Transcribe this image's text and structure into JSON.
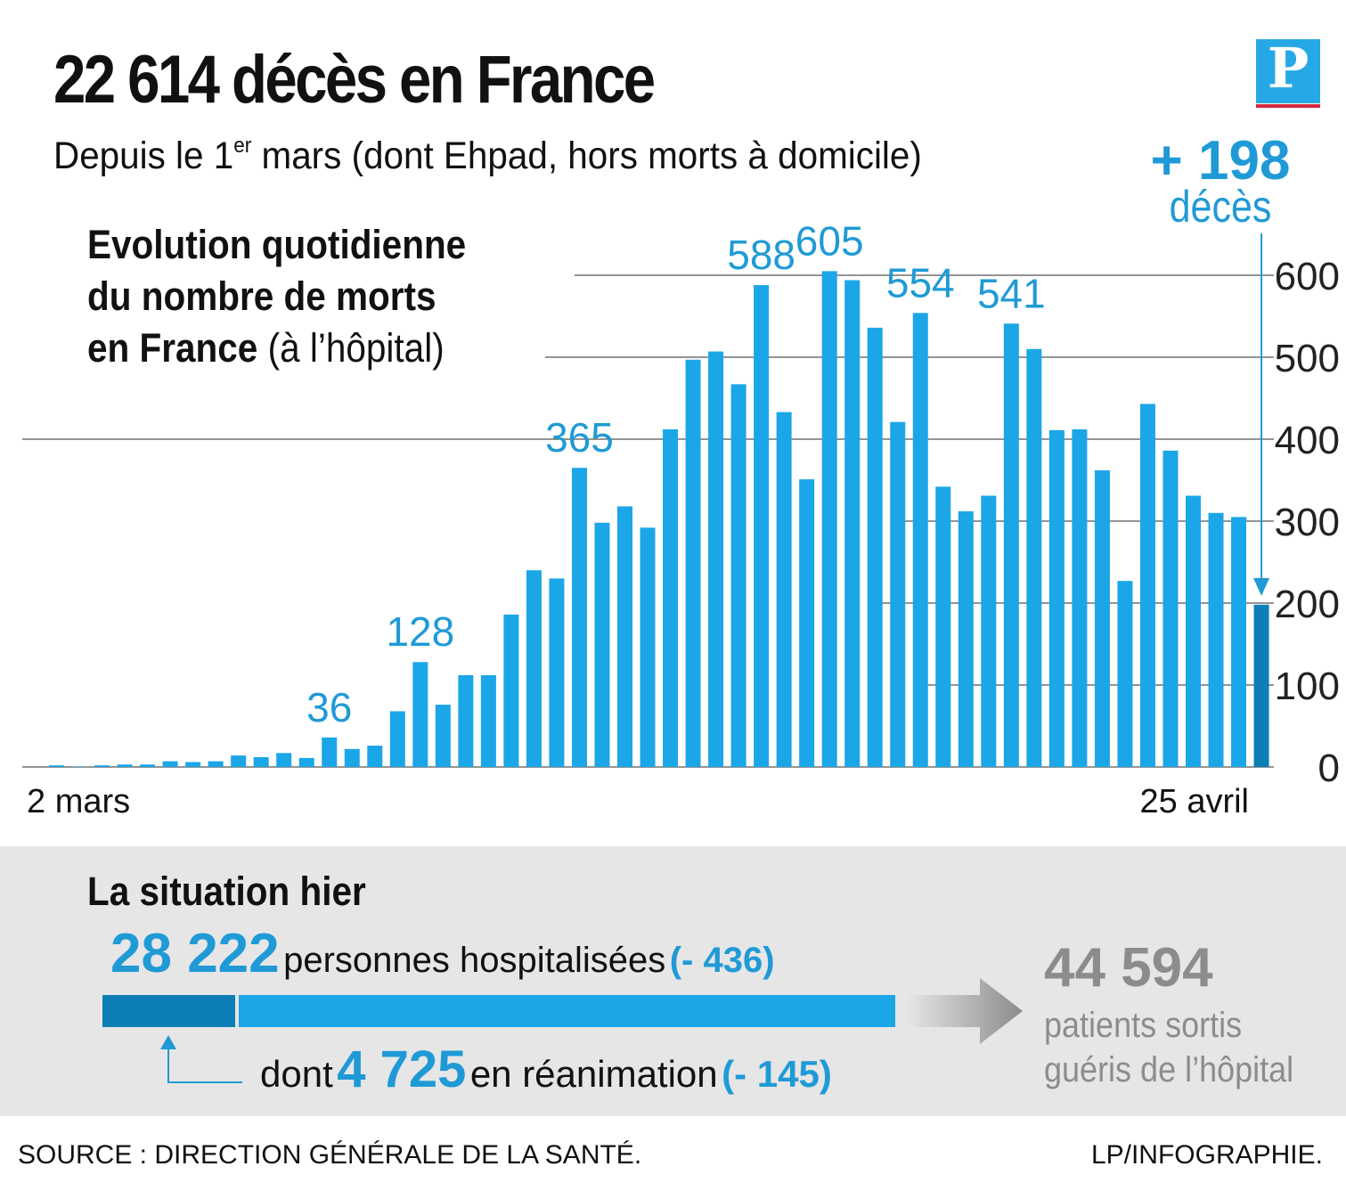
{
  "header": {
    "title": "22 614 décès en France",
    "subtitle_before": "Depuis le 1",
    "subtitle_sup": "er",
    "subtitle_after": " mars (dont Ehpad, hors morts à domicile)",
    "logo_letter": "P"
  },
  "callout": {
    "value": "+ 198",
    "unit": "décès"
  },
  "chart_heading": {
    "line1": "Evolution quotidienne",
    "line2": "du nombre de morts",
    "line3_bold": "en France",
    "line3_normal": " (à l’hôpital)"
  },
  "chart_data": {
    "type": "bar",
    "title": "Evolution quotidienne du nombre de morts en France (à l’hôpital)",
    "x_start_label": "2 mars",
    "x_end_label": "25 avril",
    "values": [
      2,
      0,
      2,
      3,
      3,
      7,
      6,
      7,
      14,
      12,
      17,
      11,
      36,
      22,
      26,
      68,
      128,
      76,
      112,
      112,
      186,
      240,
      230,
      365,
      298,
      318,
      292,
      412,
      497,
      507,
      467,
      588,
      433,
      351,
      605,
      594,
      536,
      421,
      554,
      342,
      312,
      331,
      541,
      510,
      411,
      412,
      362,
      227,
      443,
      386,
      331,
      310,
      305,
      198
    ],
    "labeled_values": [
      "36",
      "128",
      "365",
      "588",
      "605",
      "554",
      "541"
    ],
    "y_ticks": [
      "0",
      "100",
      "200",
      "300",
      "400",
      "500",
      "600"
    ],
    "ylim": [
      0,
      600
    ],
    "grid": true,
    "colors": {
      "bar": "#1ba6e8",
      "last_bar": "#0e7fb6",
      "label": "#1f9ad6",
      "grid": "#555555"
    }
  },
  "situation": {
    "title": "La situation hier",
    "hospitalized_value": "28 222",
    "hospitalized_label": "personnes hospitalisées",
    "hospitalized_change": "(- 436)",
    "hospitalized_total": 28222,
    "reanimation_prefix": "dont",
    "reanimation_value": "4 725",
    "reanimation_label": "en réanimation",
    "reanimation_change": "(- 145)",
    "reanimation_total": 4725,
    "recovered_value": "44 594",
    "recovered_line1": "patients sortis",
    "recovered_line2": "guéris de l’hôpital"
  },
  "footer": {
    "source": "SOURCE : DIRECTION GÉNÉRALE DE LA SANTÉ.",
    "credit": "LP/INFOGRAPHIE."
  }
}
